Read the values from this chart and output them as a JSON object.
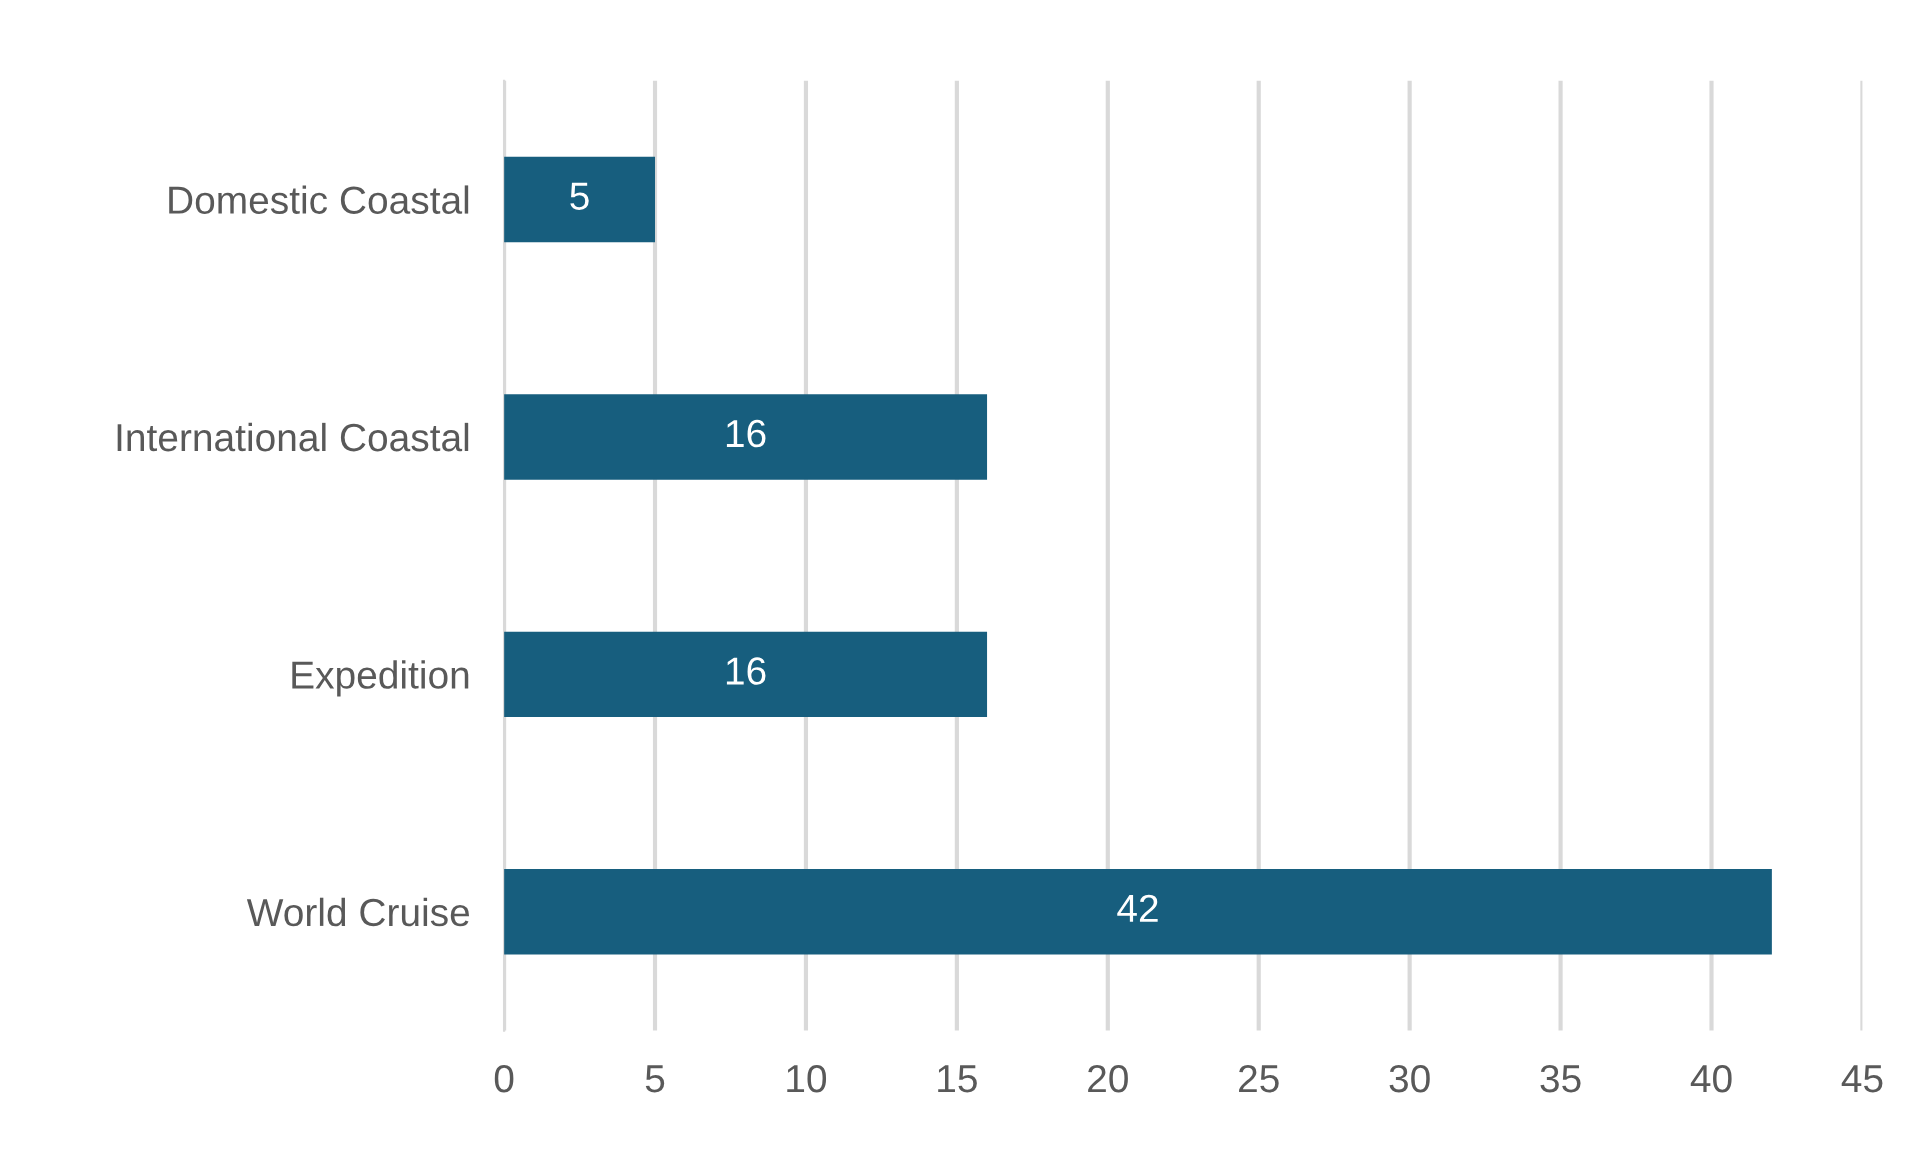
{
  "chart_data": {
    "type": "bar",
    "orientation": "horizontal",
    "categories": [
      "Domestic Coastal",
      "International Coastal",
      "Expedition",
      "World Cruise"
    ],
    "values": [
      5,
      16,
      16,
      42
    ],
    "color": "#175e7e",
    "xlim": [
      0,
      45
    ],
    "xticks": [
      0,
      5,
      10,
      15,
      20,
      25,
      30,
      35,
      40,
      45
    ],
    "grid": "x",
    "data_labels": true
  }
}
